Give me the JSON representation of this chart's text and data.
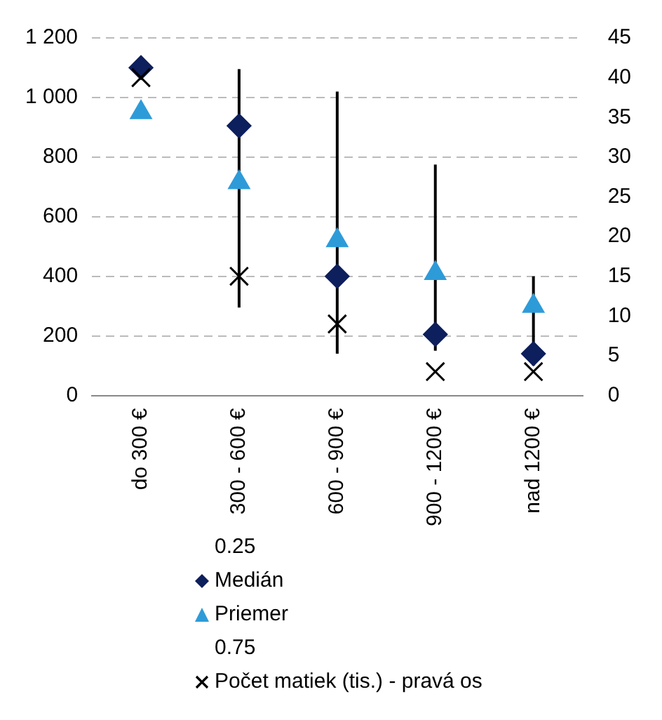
{
  "chart_data": {
    "type": "scatter",
    "categories": [
      "do 300 €",
      "300 - 600 €",
      "600 - 900 €",
      "900 - 1200 €",
      "nad 1200 €"
    ],
    "series": [
      {
        "name": "0.25",
        "marker": "none",
        "color": "#000000",
        "values": [
          null,
          null,
          null,
          null,
          null
        ]
      },
      {
        "name": "Medián",
        "marker": "diamond",
        "color": "#0d1f5c",
        "values": [
          1100,
          905,
          400,
          205,
          140
        ],
        "errors": [
          null,
          [
            295,
            1095
          ],
          [
            140,
            1020
          ],
          [
            150,
            775
          ],
          [
            100,
            400
          ]
        ]
      },
      {
        "name": "Priemer",
        "marker": "triangle",
        "color": "#2e9bd9",
        "values": [
          950,
          715,
          520,
          410,
          300
        ]
      },
      {
        "name": "0.75",
        "marker": "none",
        "color": "#000000",
        "values": [
          null,
          null,
          null,
          null,
          null
        ]
      },
      {
        "name": "Počet matiek (tis.) - pravá os",
        "marker": "cross",
        "axis": "y2",
        "color": "#000000",
        "values": [
          40,
          15,
          9,
          3,
          3
        ]
      }
    ],
    "ylim": [
      0,
      1200
    ],
    "yticks": [
      0,
      200,
      400,
      600,
      800,
      {
        "value": 1000,
        "label": "1 000"
      },
      {
        "value": 1200,
        "label": "1 200"
      }
    ],
    "y2lim": [
      0,
      45
    ],
    "y2ticks": [
      0,
      5,
      10,
      15,
      20,
      25,
      30,
      35,
      40,
      45
    ],
    "grid": "y",
    "legend": "bottom left"
  }
}
